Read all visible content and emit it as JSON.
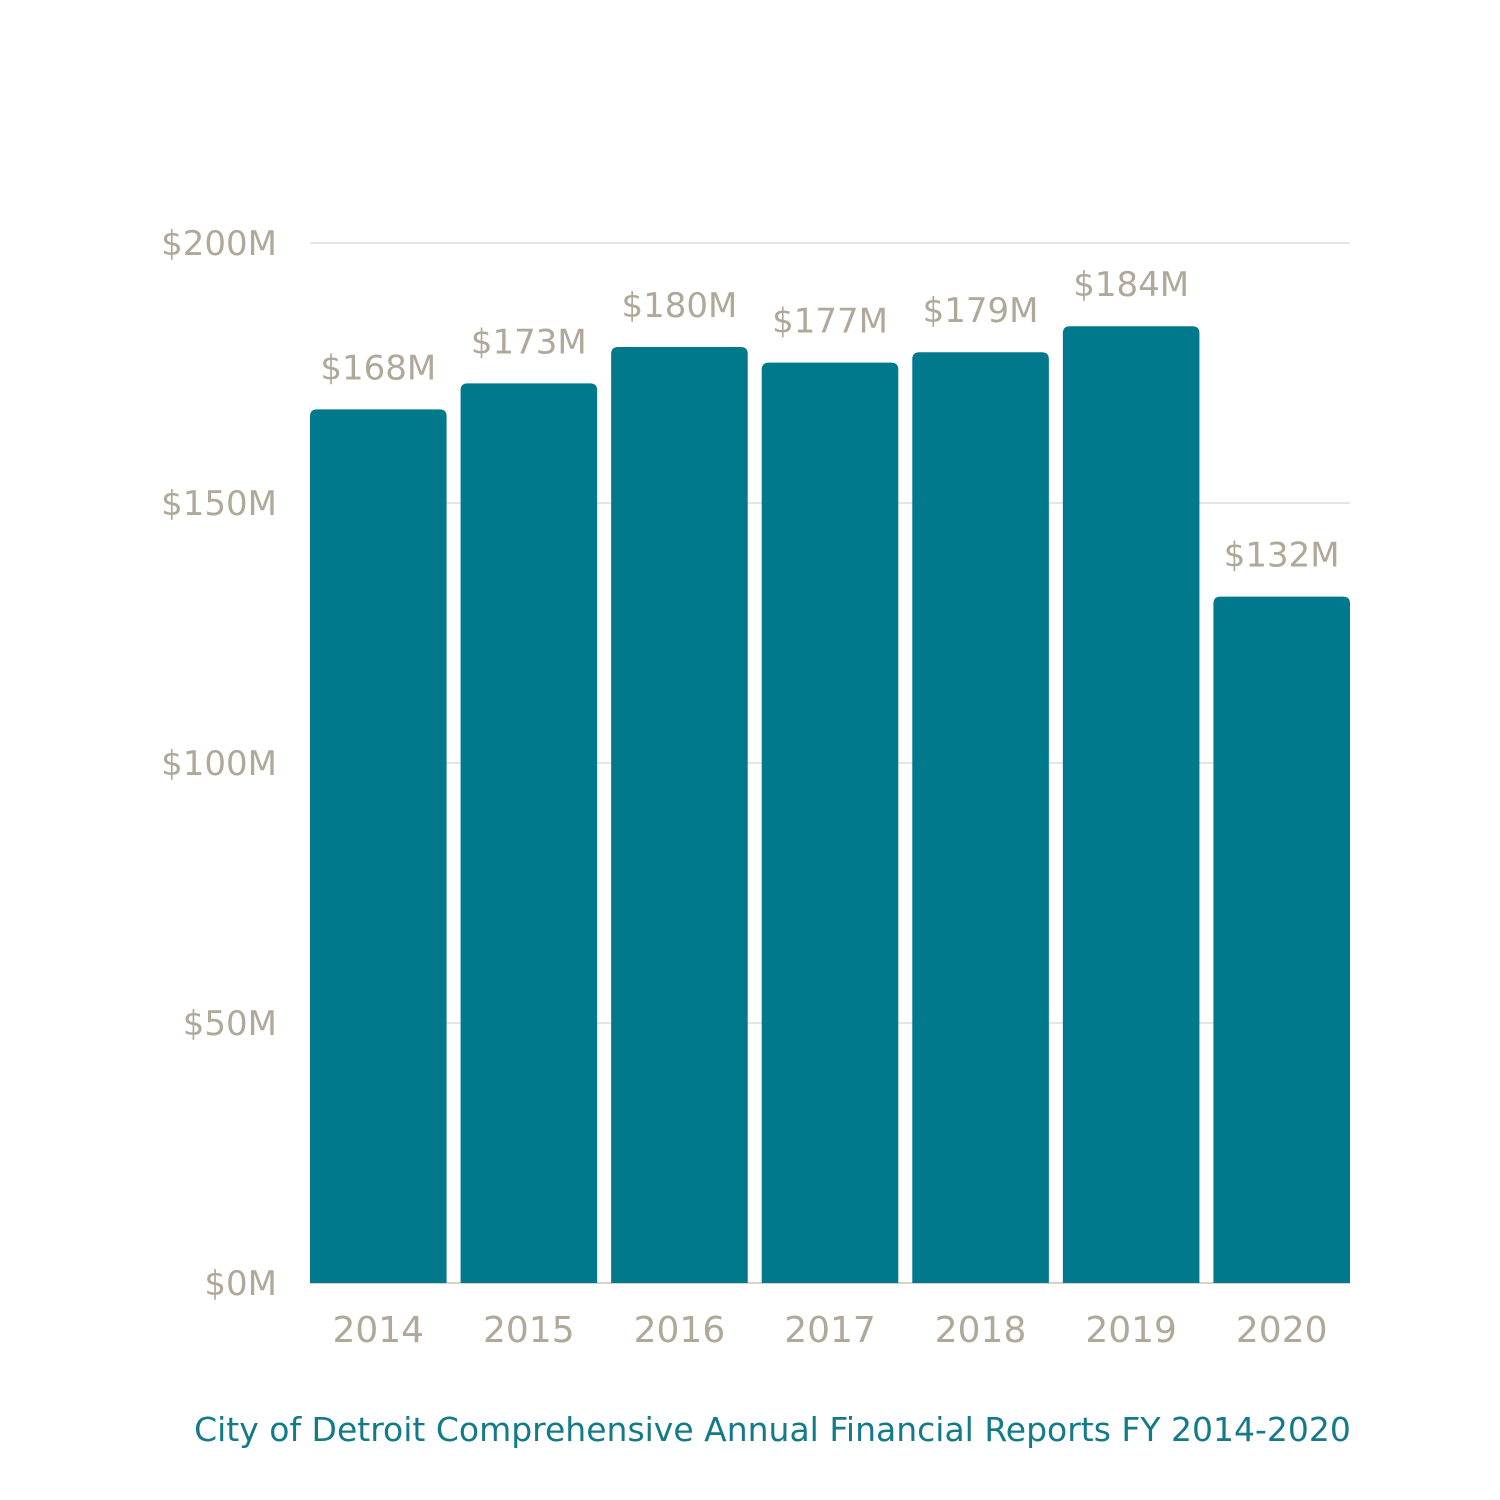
{
  "chart_data": {
    "type": "bar",
    "categories": [
      "2014",
      "2015",
      "2016",
      "2017",
      "2018",
      "2019",
      "2020"
    ],
    "values": [
      168,
      173,
      180,
      177,
      179,
      184,
      132
    ],
    "value_labels": [
      "$168M",
      "$173M",
      "$180M",
      "$177M",
      "$179M",
      "$184M",
      "$132M"
    ],
    "unit": "millions USD",
    "ylim": [
      0,
      200
    ],
    "yticks": [
      0,
      50,
      100,
      150,
      200
    ],
    "ytick_labels": [
      "$0M",
      "$50M",
      "$100M",
      "$150M",
      "$200M"
    ],
    "grid": true,
    "bar_color": "#00798c",
    "xlabel": "",
    "ylabel": "",
    "title": ""
  },
  "source_note": "City of Detroit Comprehensive Annual Financial Reports FY 2014-2020"
}
